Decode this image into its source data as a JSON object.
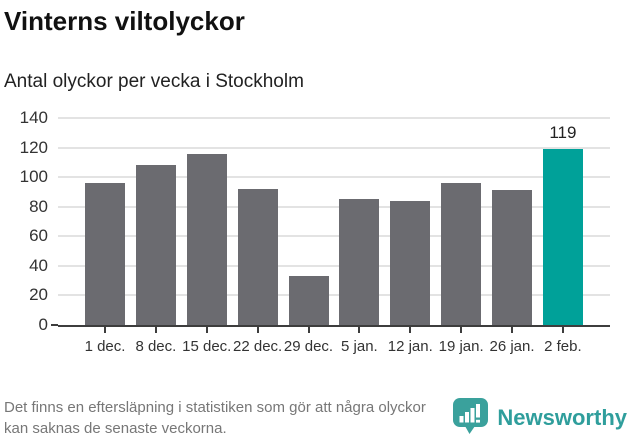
{
  "header": {
    "title": "Vinterns viltolyckor",
    "subtitle": "Antal olyckor per vecka i Stockholm"
  },
  "chart_data": {
    "type": "bar",
    "title": "Vinterns viltolyckor",
    "subtitle": "Antal olyckor per vecka i Stockholm",
    "categories": [
      "1 dec.",
      "8 dec.",
      "15 dec.",
      "22 dec.",
      "29 dec.",
      "5 jan.",
      "12 jan.",
      "19 jan.",
      "26 jan.",
      "2 feb."
    ],
    "values": [
      96,
      108,
      116,
      92,
      33,
      85,
      84,
      96,
      91,
      119
    ],
    "highlight_index": 9,
    "highlight_value_label": "119",
    "yticks": [
      0,
      20,
      40,
      60,
      80,
      100,
      120,
      140
    ],
    "ylim": [
      0,
      140
    ],
    "xlabel": "",
    "ylabel": "",
    "grid": true,
    "legend": false,
    "bar_color": "#6b6b70",
    "highlight_color": "#00a199",
    "grid_color": "#e3e3e3",
    "axis_color": "#3d3d3d"
  },
  "footer": {
    "note": "Det finns en eftersläpning i statistiken som gör att några olyckor kan saknas de senaste veckorna.",
    "brand": "Newsworthy"
  },
  "colors": {
    "logo_bubble": "#3aa19c",
    "brand_text": "#2f9e9c"
  }
}
